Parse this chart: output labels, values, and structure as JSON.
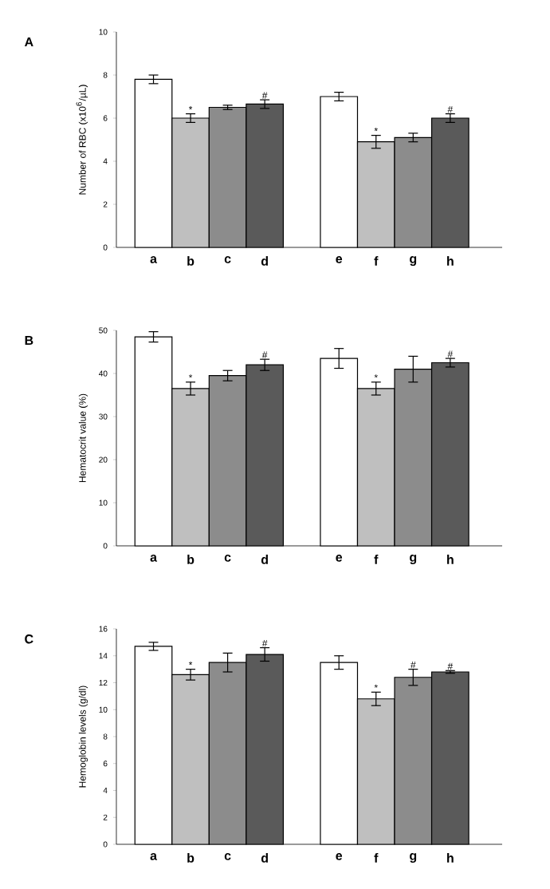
{
  "chart_data": [
    {
      "type": "bar",
      "title": "A",
      "ylabel": "Number of RBC (x10$^{6}$/µL)",
      "categories": [
        "a",
        "b",
        "c",
        "d",
        null,
        "e",
        "f",
        "g",
        "h"
      ],
      "values": [
        7.8,
        6.0,
        6.5,
        6.65,
        null,
        7.0,
        4.9,
        5.1,
        6.0
      ],
      "errors": [
        0.2,
        0.2,
        0.1,
        0.2,
        null,
        0.2,
        0.3,
        0.2,
        0.2
      ],
      "colors": [
        "#ffffff",
        "#bfbfbf",
        "#8c8c8c",
        "#5a5a5a",
        "#ffffff",
        "#ffffff",
        "#bfbfbf",
        "#8c8c8c",
        "#5a5a5a"
      ],
      "ylim": [
        0,
        10
      ],
      "yticks": [
        0,
        2,
        4,
        6,
        8,
        10
      ],
      "annotations": [
        {
          "text": "*",
          "x": "b",
          "y": 6.2
        },
        {
          "text": "#",
          "x": "d",
          "y": 6.85
        },
        {
          "text": "*",
          "x": "f",
          "y": 5.2
        },
        {
          "text": "#",
          "x": "h",
          "y": 6.2
        }
      ]
    },
    {
      "type": "bar",
      "title": "B",
      "ylabel": "Hematocrit value (%)",
      "categories": [
        "a",
        "b",
        "c",
        "d",
        null,
        "e",
        "f",
        "g",
        "h"
      ],
      "values": [
        48.5,
        36.5,
        39.5,
        42,
        null,
        43.5,
        36.5,
        41,
        42.5
      ],
      "errors": [
        1.2,
        1.5,
        1.2,
        1.3,
        null,
        2.3,
        1.5,
        3,
        1
      ],
      "colors": [
        "#ffffff",
        "#bfbfbf",
        "#8c8c8c",
        "#5a5a5a",
        "#ffffff",
        "#ffffff",
        "#bfbfbf",
        "#8c8c8c",
        "#5a5a5a"
      ],
      "ylim": [
        0,
        50
      ],
      "yticks": [
        0,
        10,
        20,
        30,
        40,
        50
      ],
      "annotations": [
        {
          "text": "*",
          "x": "b",
          "y": 38
        },
        {
          "text": "#",
          "x": "d",
          "y": 43.3
        },
        {
          "text": "*",
          "x": "f",
          "y": 38
        },
        {
          "text": "#",
          "x": "h",
          "y": 43.5
        }
      ]
    },
    {
      "type": "bar",
      "title": "C",
      "ylabel": "Hemoglobin levels (g/dl)",
      "categories": [
        "a",
        "b",
        "c",
        "d",
        null,
        "e",
        "f",
        "g",
        "h"
      ],
      "values": [
        14.7,
        12.6,
        13.5,
        14.1,
        null,
        13.5,
        10.8,
        12.4,
        12.8
      ],
      "errors": [
        0.3,
        0.4,
        0.7,
        0.5,
        null,
        0.5,
        0.5,
        0.6,
        0.1
      ],
      "colors": [
        "#ffffff",
        "#bfbfbf",
        "#8c8c8c",
        "#5a5a5a",
        "#ffffff",
        "#ffffff",
        "#bfbfbf",
        "#8c8c8c",
        "#5a5a5a"
      ],
      "ylim": [
        0,
        16
      ],
      "yticks": [
        0,
        2,
        4,
        6,
        8,
        10,
        12,
        14,
        16
      ],
      "annotations": [
        {
          "text": "*",
          "x": "b",
          "y": 13.0
        },
        {
          "text": "#",
          "x": "d",
          "y": 14.6
        },
        {
          "text": "*",
          "x": "f",
          "y": 11.3
        },
        {
          "text": "#",
          "x": "g",
          "y": 13.0
        },
        {
          "text": "#",
          "x": "h",
          "y": 12.9
        }
      ]
    }
  ]
}
